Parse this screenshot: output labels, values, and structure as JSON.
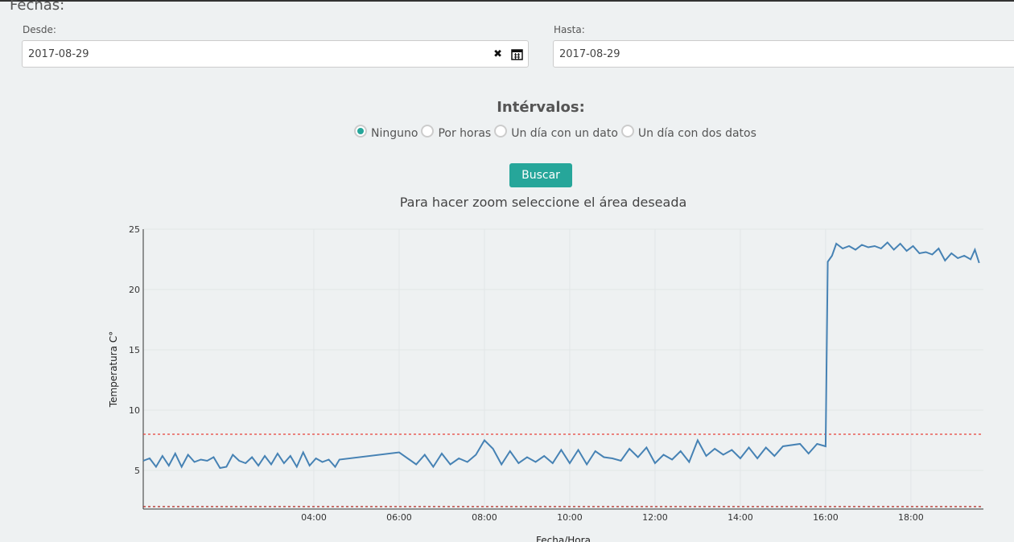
{
  "header": {
    "title": "Fechas:"
  },
  "form": {
    "from_label": "Desde:",
    "from_value": "2017-08-29",
    "to_label": "Hasta:",
    "to_value": "2017-08-29",
    "intervals_title": "Intérvalos:",
    "options": [
      "Ninguno",
      "Por horas",
      "Un día con un dato",
      "Un día con dos datos"
    ],
    "selected": 0,
    "button": "Buscar"
  },
  "chart_data": {
    "type": "line",
    "title": "Para hacer zoom seleccione el área deseada",
    "x_label": "Fecha/Hora",
    "y_label": "Temperatura C°",
    "xlim": [
      0,
      19.7
    ],
    "ylim": [
      1.8,
      25
    ],
    "xticks": [
      {
        "value": 4,
        "label": "04:00"
      },
      {
        "value": 6,
        "label": "06:00"
      },
      {
        "value": 8,
        "label": "08:00"
      },
      {
        "value": 10,
        "label": "10:00"
      },
      {
        "value": 12,
        "label": "12:00"
      },
      {
        "value": 14,
        "label": "14:00"
      },
      {
        "value": 16,
        "label": "16:00"
      },
      {
        "value": 18,
        "label": "18:00"
      }
    ],
    "yticks": [
      5,
      10,
      15,
      20,
      25
    ],
    "grid": true,
    "reference_lines": [
      {
        "value": 8,
        "color": "#e8413a"
      },
      {
        "value": 2,
        "color": "#b0201a"
      }
    ],
    "series": [
      {
        "color": "#4682b4",
        "x": [
          0,
          0.15,
          0.3,
          0.45,
          0.6,
          0.75,
          0.9,
          1.05,
          1.2,
          1.35,
          1.5,
          1.65,
          1.8,
          1.95,
          2.1,
          2.25,
          2.4,
          2.55,
          2.7,
          2.85,
          3.0,
          3.15,
          3.3,
          3.45,
          3.6,
          3.75,
          3.9,
          4.05,
          4.2,
          4.35,
          4.5,
          4.6,
          6.0,
          6.4,
          6.6,
          6.8,
          7.0,
          7.2,
          7.4,
          7.6,
          7.8,
          8.0,
          8.2,
          8.4,
          8.6,
          8.8,
          9.0,
          9.2,
          9.4,
          9.6,
          9.8,
          10.0,
          10.2,
          10.4,
          10.6,
          10.8,
          11.0,
          11.2,
          11.4,
          11.6,
          11.8,
          12.0,
          12.2,
          12.4,
          12.6,
          12.8,
          13.0,
          13.2,
          13.4,
          13.6,
          13.8,
          14.0,
          14.2,
          14.4,
          14.6,
          14.8,
          15.0,
          15.4,
          15.6,
          15.8,
          16.0,
          16.05,
          16.15,
          16.25,
          16.4,
          16.55,
          16.7,
          16.85,
          17.0,
          17.15,
          17.3,
          17.45,
          17.6,
          17.75,
          17.9,
          18.05,
          18.2,
          18.35,
          18.5,
          18.65,
          18.8,
          18.95,
          19.1,
          19.25,
          19.4,
          19.5,
          19.6
        ],
        "values": [
          5.8,
          6.0,
          5.3,
          6.2,
          5.4,
          6.4,
          5.3,
          6.3,
          5.7,
          5.9,
          5.8,
          6.1,
          5.2,
          5.3,
          6.3,
          5.8,
          5.6,
          6.1,
          5.4,
          6.2,
          5.5,
          6.4,
          5.6,
          6.2,
          5.3,
          6.5,
          5.4,
          6.0,
          5.7,
          5.9,
          5.3,
          5.9,
          6.5,
          5.5,
          6.3,
          5.3,
          6.4,
          5.5,
          6.0,
          5.7,
          6.3,
          7.5,
          6.8,
          5.5,
          6.6,
          5.6,
          6.1,
          5.7,
          6.2,
          5.6,
          6.7,
          5.6,
          6.7,
          5.5,
          6.6,
          6.1,
          6.0,
          5.8,
          6.8,
          6.1,
          6.9,
          5.6,
          6.3,
          5.9,
          6.6,
          5.7,
          7.5,
          6.2,
          6.8,
          6.3,
          6.7,
          6.0,
          6.9,
          6.0,
          6.9,
          6.2,
          7.0,
          7.2,
          6.4,
          7.2,
          7.0,
          22.3,
          22.8,
          23.8,
          23.4,
          23.6,
          23.3,
          23.7,
          23.5,
          23.6,
          23.4,
          23.9,
          23.3,
          23.8,
          23.2,
          23.6,
          23.0,
          23.1,
          22.9,
          23.4,
          22.4,
          23.0,
          22.6,
          22.8,
          22.5,
          23.3,
          22.2
        ]
      }
    ]
  }
}
